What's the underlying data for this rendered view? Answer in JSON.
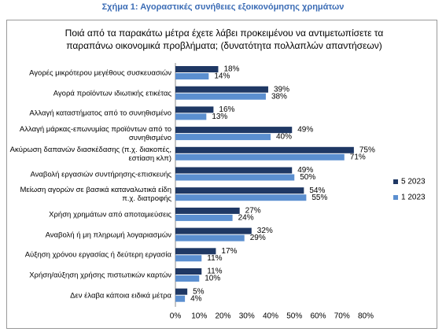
{
  "chart_data": {
    "type": "bar",
    "orientation": "horizontal",
    "title": "Σχήμα 1: Αγοραστικές συνήθειες εξοικονόμησης χρημάτων",
    "subtitle": "Ποιά από τα παρακάτω μέτρα έχετε λάβει προκειμένου να αντιμετωπίσετε τα παραπάνω οικονομικά προβλήματα; (δυνατότητα πολλαπλών απαντήσεων)",
    "categories": [
      "Αγορές μικρότερου μεγέθους συσκευασιών",
      "Αγορά προϊόντων ιδιωτικής ετικέτας",
      "Αλλαγή καταστήματος από το συνηθισμένο",
      "Αλλαγή μάρκας-επωνυμίας προϊόντων από το συνηθισμένο",
      "Ακύρωση δαπανών διασκέδασης (π.χ. διακοπές, εστίαση κλπ)",
      "Αναβολή εργασιών συντήρησης-επισκευής",
      "Μείωση αγορών σε βασικά καταναλωτικά είδη π.χ. διατροφής",
      "Χρήση χρημάτων από αποταμιεύσεις",
      "Αναβολή ή μη πληρωμή λογαριασμών",
      "Αύξηση χρόνου εργασίας ή δεύτερη εργασία",
      "Χρήση/αύξηση χρήσης πιστωτικών καρτών",
      "Δεν έλαβα κάποια ειδικά μέτρα"
    ],
    "series": [
      {
        "name": "5 2023",
        "color": "#1f3864",
        "values": [
          18,
          39,
          16,
          49,
          75,
          49,
          54,
          27,
          32,
          17,
          11,
          5
        ],
        "value_labels": [
          "18%",
          "39%",
          "16%",
          "49%",
          "75%",
          "49%",
          "54%",
          "27%",
          "32%",
          "17%",
          "11%",
          "5%"
        ]
      },
      {
        "name": "1 2023",
        "color": "#5b8fd0",
        "values": [
          14,
          38,
          13,
          40,
          71,
          50,
          55,
          24,
          29,
          11,
          10,
          4
        ],
        "value_labels": [
          "14%",
          "38%",
          "13%",
          "40%",
          "71%",
          "50%",
          "55%",
          "24%",
          "29%",
          "11%",
          "10%",
          "4%"
        ]
      }
    ],
    "xlim": [
      0,
      80
    ],
    "xticks": [
      {
        "value": 0,
        "label": "0%"
      },
      {
        "value": 10,
        "label": "10%"
      },
      {
        "value": 20,
        "label": "20%"
      },
      {
        "value": 30,
        "label": "30%"
      },
      {
        "value": 40,
        "label": "40%"
      },
      {
        "value": 50,
        "label": "50%"
      },
      {
        "value": 60,
        "label": "60%"
      },
      {
        "value": 70,
        "label": "70%"
      },
      {
        "value": 80,
        "label": "80%"
      }
    ],
    "grid": false,
    "legend": "right"
  }
}
